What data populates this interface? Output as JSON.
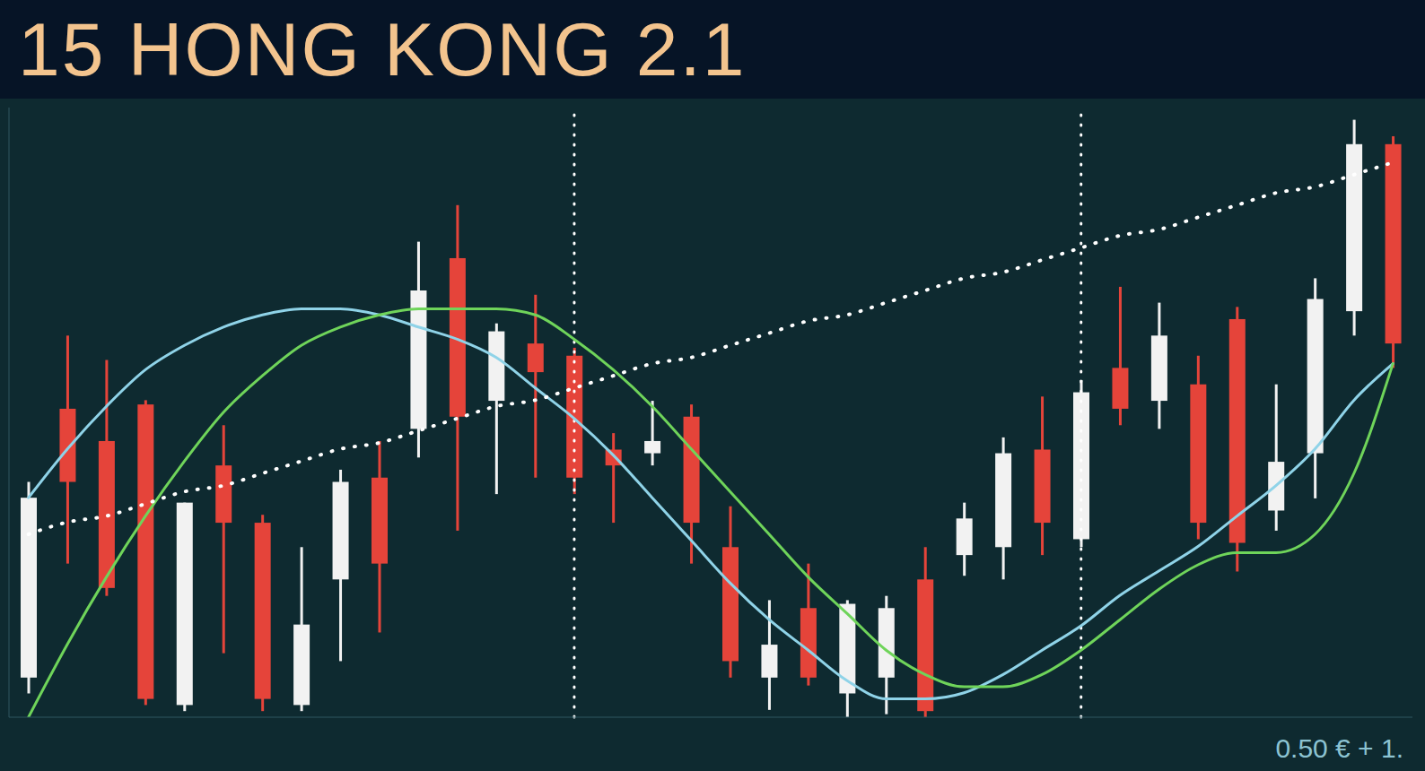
{
  "chart_data": {
    "type": "candlestick",
    "title": "15 HONG KONG 2.1",
    "annotation": "0.50 € + 1.",
    "tick_labels": false,
    "ylim": [
      0,
      100
    ],
    "vlines": [
      14,
      27
    ],
    "categories": [
      null,
      null,
      null,
      null,
      null,
      null,
      null,
      null,
      null,
      null,
      null,
      null,
      null,
      null,
      null,
      null,
      null,
      null,
      null,
      null,
      null,
      null,
      null,
      null,
      null,
      null,
      null,
      null,
      null,
      null,
      null,
      null,
      null,
      null,
      null,
      null
    ],
    "series": [
      {
        "type": "candlestick",
        "colors": [
          "#f2f2f2",
          "#e5443a",
          "#e5443a",
          "#e5443a",
          "#f2f2f2",
          "#e5443a",
          "#e5443a",
          "#f2f2f2",
          "#f2f2f2",
          "#e5443a",
          "#f2f2f2",
          "#e5443a",
          "#f2f2f2",
          "#e5443a",
          "#e5443a",
          "#e5443a",
          "#f2f2f2",
          "#e5443a",
          "#e5443a",
          "#f2f2f2",
          "#e5443a",
          "#f2f2f2",
          "#f2f2f2",
          "#e5443a",
          "#f2f2f2",
          "#f2f2f2",
          "#e5443a",
          "#f2f2f2",
          "#e5443a",
          "#f2f2f2",
          "#e5443a",
          "#e5443a",
          "#f2f2f2",
          "#f2f2f2",
          "#f2f2f2",
          "#e5443a"
        ],
        "open": [
          6.5,
          50.6,
          45.3,
          51.3,
          2,
          41.3,
          31.9,
          2,
          22.6,
          39.3,
          47.3,
          75.3,
          51.9,
          61.3,
          59.3,
          43.9,
          43.3,
          49.3,
          27.9,
          6.5,
          17.9,
          3.9,
          6.5,
          22.6,
          26.6,
          27.9,
          43.9,
          29.2,
          57.3,
          51.9,
          54.6,
          65.3,
          33.9,
          43.3,
          66.6,
          94
        ],
        "high": [
          38.6,
          62.6,
          58.6,
          52,
          35.2,
          47.9,
          33.2,
          27.9,
          40.6,
          45.3,
          78,
          84,
          64.6,
          69.3,
          60.6,
          46.6,
          51.9,
          51.3,
          34.6,
          19.2,
          25.2,
          19.2,
          19.9,
          27.9,
          35.2,
          45.9,
          52.6,
          55.3,
          70.6,
          68,
          59.3,
          67.3,
          54.6,
          72,
          98,
          95.3
        ],
        "low": [
          3.9,
          25.2,
          19.9,
          2,
          1,
          10.5,
          1,
          1,
          9.2,
          13.9,
          42.6,
          30.6,
          36.6,
          39.3,
          36.6,
          31.9,
          41.3,
          25.2,
          6.5,
          1.2,
          5.2,
          0,
          0.5,
          0,
          23.2,
          22.6,
          26.6,
          27.9,
          47.9,
          47.3,
          29.2,
          23.9,
          30.6,
          35.9,
          62.6,
          57.3
        ],
        "close": [
          36,
          38.6,
          21.2,
          3,
          35.2,
          31.9,
          3,
          15.2,
          38.6,
          25.2,
          70,
          49.3,
          63.3,
          56.6,
          39.3,
          41.3,
          45.3,
          31.9,
          9.2,
          11.9,
          6.5,
          18.6,
          17.9,
          1,
          32.6,
          43.3,
          31.9,
          53.3,
          50.6,
          62.6,
          31.9,
          28.6,
          41.9,
          68.6,
          94,
          61.3
        ]
      },
      {
        "type": "line",
        "color": "#8fd3e8",
        "values": [
          36,
          44,
          51,
          57,
          61,
          64,
          66,
          67,
          67,
          66,
          64,
          62,
          59,
          54,
          49,
          43,
          36,
          29,
          22,
          16,
          11,
          6,
          3,
          3,
          4,
          7,
          11,
          15,
          20,
          24,
          28,
          33,
          38,
          44,
          52,
          58
        ]
      },
      {
        "type": "line",
        "color": "#6fd45a",
        "values": [
          0,
          12,
          23,
          33,
          42,
          50,
          56,
          61,
          64,
          66,
          67,
          67,
          67,
          66,
          62,
          57,
          51,
          44,
          37,
          30,
          23,
          17,
          11,
          7,
          5,
          5,
          7,
          11,
          16,
          21,
          25,
          27,
          27,
          30,
          40,
          58
        ]
      },
      {
        "type": "line",
        "color": "#ffffff",
        "line_style": "dotted",
        "values": [
          30,
          32,
          33,
          35,
          37,
          38,
          40,
          42,
          44,
          45,
          47,
          49,
          51,
          52,
          54,
          56,
          58,
          59,
          61,
          63,
          65,
          66,
          68,
          70,
          72,
          73,
          75,
          77,
          79,
          80,
          82,
          84,
          86,
          87,
          89,
          91
        ]
      }
    ]
  }
}
